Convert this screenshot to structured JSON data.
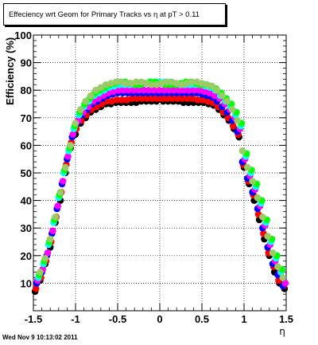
{
  "chart_data": {
    "type": "scatter",
    "title": "Effeciency wrt Geom for Primary Tracks vs    η at pT > 0.11",
    "xlabel": "η",
    "ylabel": "Efficiency (%)",
    "xlim": [
      -1.5,
      1.5
    ],
    "ylim": [
      0,
      100
    ],
    "x_ticks": [
      -1.5,
      -1,
      -0.5,
      0,
      0.5,
      1,
      1.5
    ],
    "x_tick_labels": [
      "-1.5",
      "-1",
      "-0.5",
      "0",
      "0.5",
      "1",
      "1.5"
    ],
    "y_ticks": [
      10,
      20,
      30,
      40,
      50,
      60,
      70,
      80,
      90,
      100
    ],
    "y_tick_labels": [
      "10",
      "20",
      "30",
      "40",
      "50",
      "60",
      "70",
      "80",
      "90",
      "100"
    ],
    "grid": true,
    "series": [
      {
        "color": "#000000",
        "x": [
          -1.48,
          -1.42,
          -1.36,
          -1.3,
          -1.24,
          -1.18,
          -1.12,
          -1.06,
          -1.0,
          -0.94,
          -0.88,
          -0.82,
          -0.76,
          -0.7,
          -0.64,
          -0.58,
          -0.52,
          -0.46,
          -0.4,
          -0.34,
          -0.28,
          -0.22,
          -0.16,
          -0.1,
          -0.04,
          0.04,
          0.1,
          0.16,
          0.22,
          0.28,
          0.34,
          0.4,
          0.46,
          0.52,
          0.58,
          0.64,
          0.7,
          0.76,
          0.82,
          0.88,
          0.94,
          1.0,
          1.06,
          1.12,
          1.18,
          1.24,
          1.3,
          1.36,
          1.42,
          1.48
        ],
        "y": [
          7,
          11,
          17,
          23,
          32,
          40,
          50,
          59,
          64,
          68,
          70,
          72,
          73,
          74,
          75,
          75,
          75.5,
          75.5,
          75.5,
          75.5,
          75.5,
          76,
          76,
          76,
          76,
          76,
          76,
          76,
          76,
          75.5,
          75.5,
          75.5,
          75.5,
          75.5,
          75,
          74.5,
          73,
          71,
          69,
          66,
          63,
          52,
          46,
          40,
          33,
          26,
          20,
          14,
          10,
          8
        ]
      },
      {
        "color": "#ff0000",
        "x": [
          -1.47,
          -1.41,
          -1.35,
          -1.29,
          -1.23,
          -1.17,
          -1.11,
          -1.05,
          -0.99,
          -0.93,
          -0.87,
          -0.81,
          -0.75,
          -0.69,
          -0.63,
          -0.57,
          -0.51,
          -0.45,
          -0.39,
          -0.33,
          -0.27,
          -0.21,
          -0.15,
          -0.09,
          -0.03,
          0.03,
          0.09,
          0.15,
          0.21,
          0.27,
          0.33,
          0.39,
          0.45,
          0.51,
          0.57,
          0.63,
          0.69,
          0.75,
          0.81,
          0.87,
          0.93,
          0.99,
          1.05,
          1.11,
          1.17,
          1.23,
          1.29,
          1.35,
          1.41,
          1.47
        ],
        "y": [
          8,
          12,
          18,
          25,
          34,
          43,
          53,
          61,
          66,
          69,
          71,
          73,
          74,
          75,
          76,
          76,
          76.5,
          76.5,
          76.5,
          77,
          77,
          77,
          77,
          77,
          77,
          77,
          77,
          77,
          77,
          77,
          77,
          77,
          76.5,
          76.5,
          76,
          75.5,
          74,
          72,
          70,
          67,
          64,
          53,
          47,
          42,
          35,
          28,
          21,
          16,
          11,
          9
        ]
      },
      {
        "color": "#0000ff",
        "x": [
          -1.46,
          -1.4,
          -1.34,
          -1.28,
          -1.22,
          -1.16,
          -1.1,
          -1.04,
          -0.98,
          -0.92,
          -0.86,
          -0.8,
          -0.74,
          -0.68,
          -0.62,
          -0.56,
          -0.5,
          -0.44,
          -0.38,
          -0.32,
          -0.26,
          -0.2,
          -0.14,
          -0.08,
          -0.02,
          0.02,
          0.08,
          0.14,
          0.2,
          0.26,
          0.32,
          0.38,
          0.44,
          0.5,
          0.56,
          0.62,
          0.68,
          0.74,
          0.8,
          0.86,
          0.92,
          0.98,
          1.04,
          1.1,
          1.16,
          1.22,
          1.28,
          1.34,
          1.4,
          1.46
        ],
        "y": [
          10,
          14,
          20,
          28,
          37,
          46,
          55,
          63,
          68,
          71,
          73,
          75,
          76,
          77,
          78,
          78.5,
          79,
          79,
          79,
          79,
          79,
          79,
          79,
          79,
          79,
          79,
          79,
          79,
          79,
          79,
          79,
          79,
          79,
          78.5,
          78,
          77.5,
          76,
          74,
          72,
          69,
          65,
          54,
          48,
          43,
          37,
          30,
          23,
          17,
          13,
          9
        ]
      },
      {
        "color": "#ff00ff",
        "x": [
          -1.45,
          -1.39,
          -1.33,
          -1.27,
          -1.21,
          -1.15,
          -1.09,
          -1.03,
          -0.97,
          -0.91,
          -0.85,
          -0.79,
          -0.73,
          -0.67,
          -0.61,
          -0.55,
          -0.49,
          -0.43,
          -0.37,
          -0.31,
          -0.25,
          -0.19,
          -0.13,
          -0.07,
          -0.01,
          0.05,
          0.11,
          0.17,
          0.23,
          0.29,
          0.35,
          0.41,
          0.47,
          0.53,
          0.59,
          0.65,
          0.71,
          0.77,
          0.83,
          0.89,
          0.95,
          1.01,
          1.07,
          1.13,
          1.19,
          1.25,
          1.31,
          1.37,
          1.43,
          1.49
        ],
        "y": [
          11,
          15,
          21,
          29,
          38,
          47,
          56,
          64,
          69,
          72,
          74,
          76,
          77,
          78,
          79,
          79.5,
          80,
          80,
          80,
          80,
          80,
          80,
          80,
          80,
          80,
          80,
          80,
          80,
          80,
          80,
          80,
          80,
          80,
          79.5,
          79,
          78,
          77,
          75,
          73,
          70,
          66,
          55,
          49,
          44,
          38,
          31,
          24,
          18,
          14,
          10
        ]
      },
      {
        "color": "#00ffff",
        "x": [
          -1.44,
          -1.38,
          -1.32,
          -1.26,
          -1.2,
          -1.14,
          -1.08,
          -1.02,
          -0.96,
          -0.9,
          -0.84,
          -0.78,
          -0.72,
          -0.66,
          -0.6,
          -0.54,
          -0.48,
          -0.42,
          -0.36,
          -0.3,
          -0.24,
          -0.18,
          -0.12,
          -0.06,
          0.0,
          0.06,
          0.12,
          0.18,
          0.24,
          0.3,
          0.36,
          0.42,
          0.48,
          0.54,
          0.6,
          0.66,
          0.72,
          0.78,
          0.84,
          0.9,
          0.96,
          1.02,
          1.08,
          1.14,
          1.2,
          1.26,
          1.32,
          1.38,
          1.44
        ],
        "y": [
          12,
          17,
          24,
          32,
          41,
          50,
          58,
          66,
          71,
          74,
          76,
          78,
          79,
          80,
          81,
          81.5,
          82,
          82,
          82,
          82,
          82,
          82.5,
          83,
          83,
          83,
          83,
          83,
          82.5,
          82,
          82,
          82,
          82,
          82,
          81.5,
          81,
          80,
          78,
          76,
          74,
          71,
          67,
          56,
          50,
          45,
          39,
          32,
          25,
          19,
          14
        ]
      },
      {
        "color": "#00ff00",
        "x": [
          -1.43,
          -1.37,
          -1.31,
          -1.25,
          -1.19,
          -1.13,
          -1.07,
          -1.01,
          -0.95,
          -0.89,
          -0.83,
          -0.77,
          -0.71,
          -0.65,
          -0.59,
          -0.53,
          -0.47,
          -0.41,
          -0.35,
          -0.29,
          -0.23,
          -0.17,
          -0.11,
          -0.05,
          0.01,
          0.07,
          0.13,
          0.19,
          0.25,
          0.31,
          0.37,
          0.43,
          0.49,
          0.55,
          0.61,
          0.67,
          0.73,
          0.79,
          0.85,
          0.91,
          0.97,
          1.03,
          1.09,
          1.15,
          1.21,
          1.27,
          1.33,
          1.39,
          1.45
        ],
        "y": [
          13,
          18,
          25,
          33,
          42,
          51,
          59,
          67,
          72,
          75,
          77,
          79,
          80,
          81,
          82,
          82.5,
          83,
          83,
          82.5,
          82,
          82,
          82.5,
          83,
          83,
          82.5,
          82,
          82,
          82,
          82.5,
          83,
          83,
          82.5,
          82,
          82,
          81.5,
          80.5,
          79,
          77,
          75,
          72,
          68,
          57,
          51,
          46,
          40,
          33,
          26,
          20,
          15
        ]
      },
      {
        "color": "#99cc66",
        "x": [
          -1.42,
          -1.36,
          -1.3,
          -1.24,
          -1.18,
          -1.12,
          -1.06,
          -1.0,
          -0.94,
          -0.88,
          -0.82,
          -0.76,
          -0.7,
          -0.64,
          -0.58,
          -0.52,
          -0.46,
          -0.4,
          -0.34,
          -0.28,
          -0.22,
          -0.16,
          -0.1,
          -0.04,
          0.02,
          0.08,
          0.14,
          0.2,
          0.26,
          0.32,
          0.38,
          0.44,
          0.5,
          0.56,
          0.62,
          0.68,
          0.74,
          0.8,
          0.86,
          0.92,
          0.98,
          1.04,
          1.1,
          1.16,
          1.22,
          1.28,
          1.34,
          1.4,
          1.46
        ],
        "y": [
          14,
          19,
          26,
          34,
          43,
          52,
          60,
          68,
          73,
          76,
          78,
          80,
          81,
          82,
          82.5,
          83,
          83,
          82.5,
          82.5,
          83,
          83,
          82.5,
          82,
          82,
          82.5,
          83,
          83,
          82.5,
          82,
          82.5,
          83,
          83,
          82.5,
          82,
          81.5,
          80,
          78,
          76,
          73,
          69,
          58,
          52,
          47,
          41,
          34,
          27,
          21,
          16,
          12
        ]
      }
    ]
  },
  "timestamp": "Wed Nov  9 10:13:02 2011"
}
